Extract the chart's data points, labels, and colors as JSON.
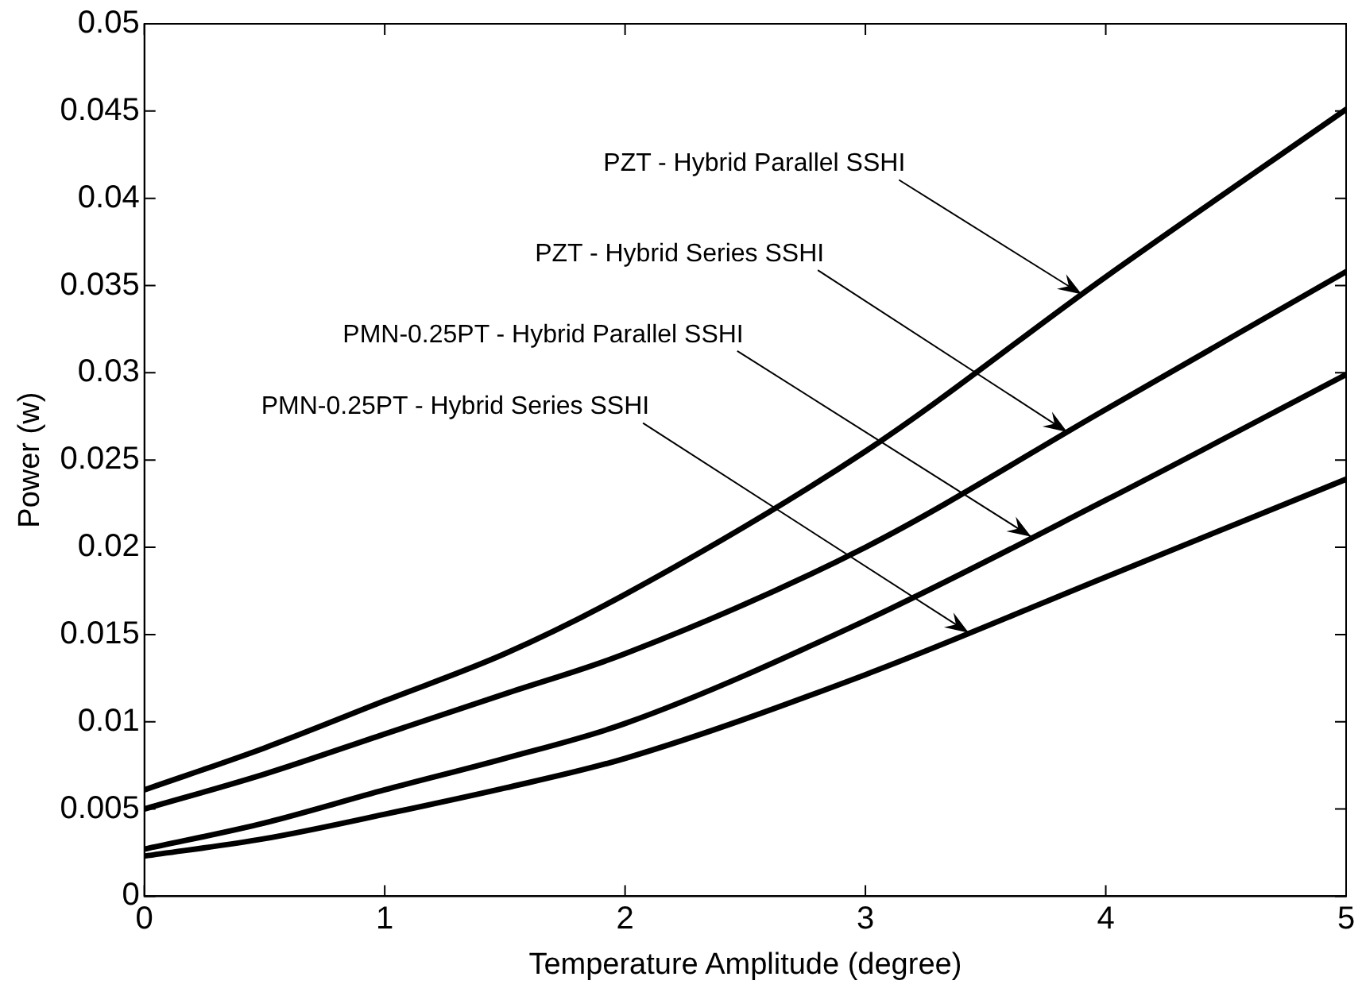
{
  "chart_data": {
    "type": "line",
    "xlabel": "Temperature Amplitude (degree)",
    "ylabel": "Power (w)",
    "x": [
      0,
      0.5,
      1,
      1.5,
      2,
      3,
      4,
      5
    ],
    "xlim": [
      0,
      5
    ],
    "xticks": [
      0,
      1,
      2,
      3,
      4,
      5
    ],
    "ylim": [
      0,
      0.05
    ],
    "yticks": [
      0,
      0.005,
      0.01,
      0.015,
      0.02,
      0.025,
      0.03,
      0.035,
      0.04,
      0.045,
      0.05
    ],
    "grid": false,
    "legend": false,
    "marker": "none",
    "line_style": "solid",
    "series": [
      {
        "color": "#000000",
        "values": [
          0.0061,
          0.0085,
          0.0112,
          0.0139,
          0.0173,
          0.0255,
          0.0355,
          0.0451
        ]
      },
      {
        "color": "#000000",
        "values": [
          0.005,
          0.007,
          0.0093,
          0.0116,
          0.0139,
          0.02,
          0.0279,
          0.0358
        ]
      },
      {
        "color": "#000000",
        "values": [
          0.0027,
          0.0042,
          0.0061,
          0.0079,
          0.0099,
          0.0158,
          0.0227,
          0.0299
        ]
      },
      {
        "color": "#000000",
        "values": [
          0.0023,
          0.0033,
          0.0047,
          0.0062,
          0.0079,
          0.0127,
          0.0183,
          0.0239
        ]
      }
    ],
    "annotations": [
      {
        "text": "PZT - Hybrid Parallel SSHI",
        "x": 3.9,
        "y": 0.0345
      },
      {
        "text": "PZT - Hybrid Series SSHI",
        "x": 3.84,
        "y": 0.0266
      },
      {
        "text": "PMN-0.25PT - Hybrid Parallel SSHI",
        "x": 3.69,
        "y": 0.0206
      },
      {
        "text": "PMN-0.25PT - Hybrid Series SSHI",
        "x": 3.43,
        "y": 0.0151
      }
    ]
  }
}
